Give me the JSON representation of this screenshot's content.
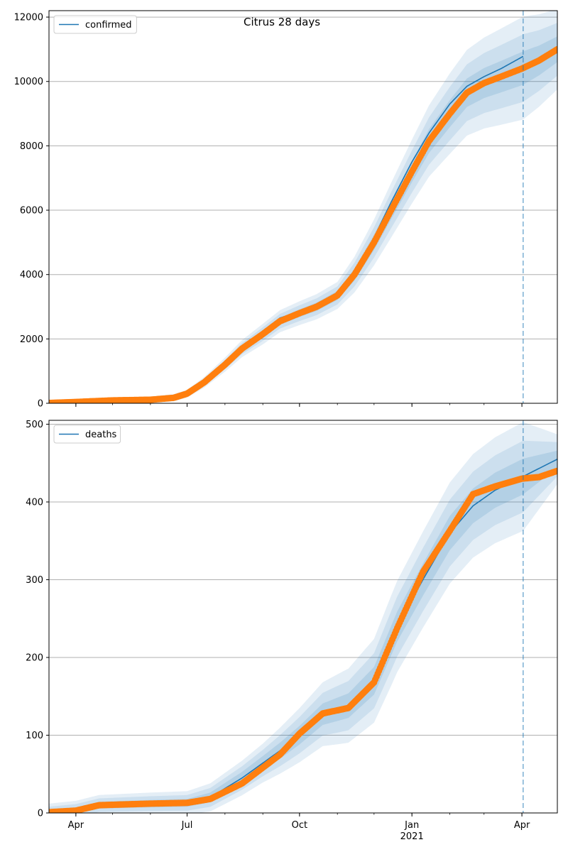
{
  "chart_data": [
    {
      "type": "line",
      "title": "Citrus 28 days",
      "ylim": [
        0,
        12200
      ],
      "yticks": [
        0,
        2000,
        4000,
        6000,
        8000,
        10000,
        12000
      ],
      "grid": "horizontal",
      "legend_placement": "top-left",
      "x_axis": {
        "type": "date",
        "range": [
          "2020-03-10",
          "2021-04-30"
        ],
        "ticks": [
          {
            "date": "2020-04-01",
            "label": "Apr"
          },
          {
            "date": "2020-07-01",
            "label": "Jul"
          },
          {
            "date": "2020-10-01",
            "label": "Oct"
          },
          {
            "date": "2021-01-01",
            "label": "Jan",
            "sublabel": "2021"
          },
          {
            "date": "2021-04-01",
            "label": "Apr"
          }
        ],
        "shared_labels_shown_on": "bottom"
      },
      "forecast_start": "2021-04-02",
      "series": [
        {
          "name": "confirmed",
          "kind": "model-fit-line",
          "color": "#1f77b4",
          "points": [
            [
              "2020-03-10",
              0
            ],
            [
              "2020-04-01",
              40
            ],
            [
              "2020-05-01",
              90
            ],
            [
              "2020-06-01",
              110
            ],
            [
              "2020-06-20",
              180
            ],
            [
              "2020-07-01",
              320
            ],
            [
              "2020-07-15",
              700
            ],
            [
              "2020-08-01",
              1250
            ],
            [
              "2020-08-15",
              1750
            ],
            [
              "2020-09-01",
              2250
            ],
            [
              "2020-09-15",
              2650
            ],
            [
              "2020-10-01",
              2850
            ],
            [
              "2020-10-15",
              3050
            ],
            [
              "2020-11-01",
              3400
            ],
            [
              "2020-11-15",
              4100
            ],
            [
              "2020-12-01",
              5150
            ],
            [
              "2020-12-15",
              6250
            ],
            [
              "2021-01-01",
              7500
            ],
            [
              "2021-01-15",
              8400
            ],
            [
              "2021-02-01",
              9300
            ],
            [
              "2021-02-15",
              9850
            ],
            [
              "2021-03-01",
              10150
            ],
            [
              "2021-03-15",
              10400
            ],
            [
              "2021-04-02",
              10780
            ]
          ]
        },
        {
          "name": "",
          "kind": "observed-points",
          "color": "#ff7f0e",
          "points": [
            [
              "2020-03-10",
              10
            ],
            [
              "2020-04-01",
              40
            ],
            [
              "2020-05-01",
              90
            ],
            [
              "2020-06-01",
              110
            ],
            [
              "2020-06-20",
              170
            ],
            [
              "2020-07-01",
              300
            ],
            [
              "2020-07-15",
              650
            ],
            [
              "2020-08-01",
              1200
            ],
            [
              "2020-08-15",
              1700
            ],
            [
              "2020-09-01",
              2150
            ],
            [
              "2020-09-15",
              2550
            ],
            [
              "2020-10-01",
              2800
            ],
            [
              "2020-10-15",
              3000
            ],
            [
              "2020-11-01",
              3350
            ],
            [
              "2020-11-15",
              4000
            ],
            [
              "2020-12-01",
              5000
            ],
            [
              "2020-12-15",
              6000
            ],
            [
              "2021-01-01",
              7200
            ],
            [
              "2021-01-15",
              8150
            ],
            [
              "2021-02-01",
              9000
            ],
            [
              "2021-02-15",
              9650
            ],
            [
              "2021-03-01",
              9950
            ],
            [
              "2021-03-15",
              10150
            ],
            [
              "2021-04-01",
              10400
            ],
            [
              "2021-04-15",
              10650
            ],
            [
              "2021-04-30",
              11000
            ]
          ]
        }
      ],
      "bands": {
        "color": "#1f77b4",
        "levels": [
          {
            "label": "outer",
            "center": "observed",
            "halfwidth": [
              [
                "2020-03-10",
                50
              ],
              [
                "2020-07-01",
                120
              ],
              [
                "2020-09-01",
                320
              ],
              [
                "2020-11-01",
                420
              ],
              [
                "2020-12-15",
                850
              ],
              [
                "2021-02-01",
                1250
              ],
              [
                "2021-04-02",
                1600
              ],
              [
                "2021-04-30",
                1250
              ]
            ]
          },
          {
            "label": "middle",
            "center": "observed",
            "halfwidth": [
              [
                "2020-03-10",
                30
              ],
              [
                "2020-07-01",
                80
              ],
              [
                "2020-09-01",
                210
              ],
              [
                "2020-11-01",
                280
              ],
              [
                "2020-12-15",
                560
              ],
              [
                "2021-02-01",
                830
              ],
              [
                "2021-04-02",
                1050
              ],
              [
                "2021-04-30",
                820
              ]
            ]
          },
          {
            "label": "inner",
            "center": "observed",
            "halfwidth": [
              [
                "2020-03-10",
                15
              ],
              [
                "2020-07-01",
                40
              ],
              [
                "2020-09-01",
                100
              ],
              [
                "2020-11-01",
                140
              ],
              [
                "2020-12-15",
                280
              ],
              [
                "2021-02-01",
                420
              ],
              [
                "2021-04-02",
                520
              ],
              [
                "2021-04-30",
                400
              ]
            ]
          }
        ]
      }
    },
    {
      "type": "line",
      "title": "",
      "ylim": [
        0,
        505
      ],
      "yticks": [
        0,
        100,
        200,
        300,
        400,
        500
      ],
      "grid": "horizontal",
      "legend_placement": "top-left",
      "x_axis": {
        "type": "date",
        "range": [
          "2020-03-10",
          "2021-04-30"
        ],
        "ticks": [
          {
            "date": "2020-04-01",
            "label": "Apr"
          },
          {
            "date": "2020-07-01",
            "label": "Jul"
          },
          {
            "date": "2020-10-01",
            "label": "Oct"
          },
          {
            "date": "2021-01-01",
            "label": "Jan",
            "sublabel": "2021"
          },
          {
            "date": "2021-04-01",
            "label": "Apr"
          }
        ],
        "shared_labels_shown_on": "bottom"
      },
      "forecast_start": "2021-04-02",
      "series": [
        {
          "name": "deaths",
          "kind": "model-fit-line",
          "color": "#1f77b4",
          "points": [
            [
              "2020-03-10",
              0
            ],
            [
              "2020-04-01",
              3
            ],
            [
              "2020-04-20",
              10
            ],
            [
              "2020-06-01",
              12
            ],
            [
              "2020-07-01",
              13
            ],
            [
              "2020-07-20",
              20
            ],
            [
              "2020-08-15",
              45
            ],
            [
              "2020-09-15",
              80
            ],
            [
              "2020-10-01",
              100
            ],
            [
              "2020-10-20",
              127
            ],
            [
              "2020-11-10",
              138
            ],
            [
              "2020-12-01",
              170
            ],
            [
              "2020-12-20",
              240
            ],
            [
              "2021-01-10",
              300
            ],
            [
              "2021-02-01",
              360
            ],
            [
              "2021-02-20",
              395
            ],
            [
              "2021-03-10",
              415
            ],
            [
              "2021-04-01",
              432
            ],
            [
              "2021-04-30",
              455
            ]
          ]
        },
        {
          "name": "",
          "kind": "observed-points",
          "color": "#ff7f0e",
          "points": [
            [
              "2020-03-10",
              1
            ],
            [
              "2020-04-01",
              3
            ],
            [
              "2020-04-20",
              10
            ],
            [
              "2020-06-01",
              12
            ],
            [
              "2020-07-01",
              13
            ],
            [
              "2020-07-20",
              18
            ],
            [
              "2020-08-15",
              38
            ],
            [
              "2020-09-15",
              75
            ],
            [
              "2020-10-01",
              102
            ],
            [
              "2020-10-20",
              128
            ],
            [
              "2020-11-10",
              135
            ],
            [
              "2020-12-01",
              168
            ],
            [
              "2020-12-20",
              238
            ],
            [
              "2021-01-10",
              310
            ],
            [
              "2021-02-01",
              363
            ],
            [
              "2021-02-20",
              410
            ],
            [
              "2021-03-10",
              420
            ],
            [
              "2021-04-01",
              430
            ],
            [
              "2021-04-15",
              432
            ],
            [
              "2021-04-30",
              440
            ]
          ]
        }
      ],
      "bands": {
        "color": "#1f77b4",
        "levels": [
          {
            "label": "outer",
            "center": "model",
            "halfwidth": [
              [
                "2020-03-10",
                12
              ],
              [
                "2020-07-01",
                15
              ],
              [
                "2020-09-01",
                25
              ],
              [
                "2020-11-01",
                45
              ],
              [
                "2020-12-15",
                58
              ],
              [
                "2021-02-01",
                65
              ],
              [
                "2021-04-02",
                70
              ],
              [
                "2021-04-30",
                32
              ]
            ]
          },
          {
            "label": "middle",
            "center": "model",
            "halfwidth": [
              [
                "2020-03-10",
                8
              ],
              [
                "2020-07-01",
                10
              ],
              [
                "2020-09-01",
                17
              ],
              [
                "2020-11-01",
                30
              ],
              [
                "2020-12-15",
                38
              ],
              [
                "2021-02-01",
                43
              ],
              [
                "2021-04-02",
                46
              ],
              [
                "2021-04-30",
                22
              ]
            ]
          },
          {
            "label": "inner",
            "center": "model",
            "halfwidth": [
              [
                "2020-03-10",
                4
              ],
              [
                "2020-07-01",
                5
              ],
              [
                "2020-09-01",
                9
              ],
              [
                "2020-11-01",
                15
              ],
              [
                "2020-12-15",
                19
              ],
              [
                "2021-02-01",
                22
              ],
              [
                "2021-04-02",
                23
              ],
              [
                "2021-04-30",
                11
              ]
            ]
          }
        ]
      }
    }
  ]
}
